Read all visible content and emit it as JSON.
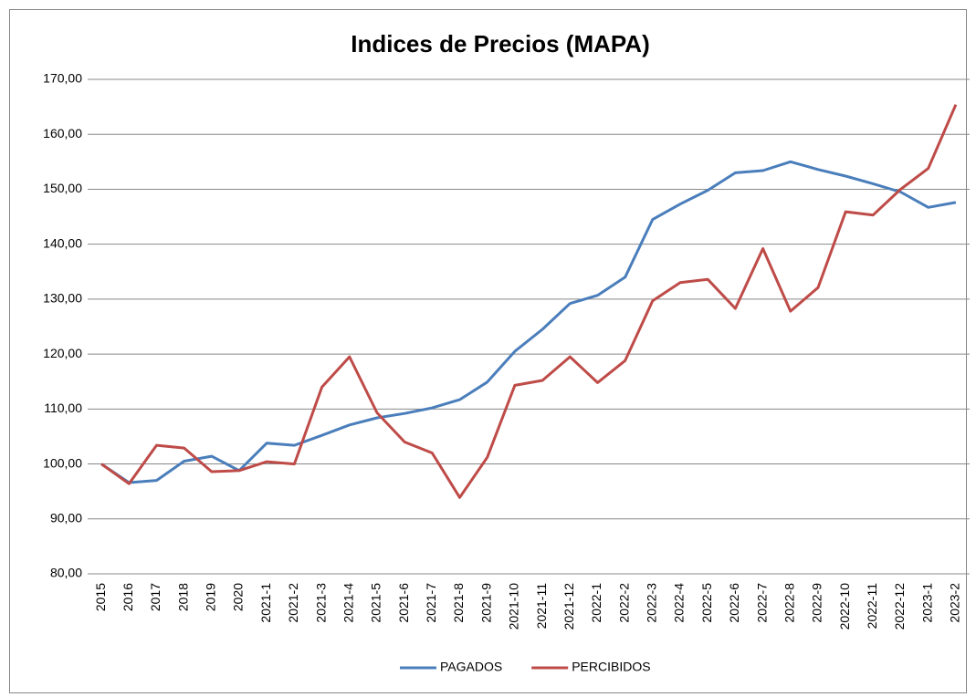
{
  "chart_data": {
    "type": "line",
    "title": "Indices de Precios  (MAPA)",
    "categories": [
      "2015",
      "2016",
      "2017",
      "2018",
      "2019",
      "2020",
      "2021-1",
      "2021-2",
      "2021-3",
      "2021-4",
      "2021-5",
      "2021-6",
      "2021-7",
      "2021-8",
      "2021-9",
      "2021-10",
      "2021-11",
      "2021-12",
      "2022-1",
      "2022-2",
      "2022-3",
      "2022-4",
      "2022-5",
      "2022-6",
      "2022-7",
      "2022-8",
      "2022-9",
      "2022-10",
      "2022-11",
      "2022-12",
      "2023-1",
      "2023-2"
    ],
    "series": [
      {
        "name": "PAGADOS",
        "color": "#4a7ebb",
        "values": [
          100,
          96.6,
          97.0,
          100.5,
          101.4,
          98.8,
          103.8,
          103.4,
          105.2,
          107.1,
          108.4,
          109.2,
          110.2,
          111.7,
          114.9,
          120.5,
          124.5,
          129.2,
          130.7,
          134.0,
          144.5,
          147.3,
          149.8,
          153.0,
          153.4,
          155.0,
          153.6,
          152.4,
          151.0,
          149.5,
          146.7,
          147.6
        ]
      },
      {
        "name": "PERCIBIDOS",
        "color": "#be4b48",
        "values": [
          100,
          96.4,
          103.4,
          102.9,
          98.6,
          98.8,
          100.4,
          100.0,
          114.0,
          119.5,
          109.3,
          104.0,
          102.0,
          93.9,
          101.2,
          114.3,
          115.2,
          119.5,
          114.8,
          118.8,
          129.7,
          133.0,
          133.6,
          128.3,
          139.2,
          127.8,
          132.1,
          145.9,
          145.3,
          150.0,
          153.8,
          165.4
        ]
      }
    ],
    "ylim": [
      80,
      170
    ],
    "yticks": [
      {
        "value": 80,
        "label": "80,00"
      },
      {
        "value": 90,
        "label": "90,00"
      },
      {
        "value": 100,
        "label": "100,00"
      },
      {
        "value": 110,
        "label": "110,00"
      },
      {
        "value": 120,
        "label": "120,00"
      },
      {
        "value": 130,
        "label": "130,00"
      },
      {
        "value": 140,
        "label": "140,00"
      },
      {
        "value": 150,
        "label": "150,00"
      },
      {
        "value": 160,
        "label": "160,00"
      },
      {
        "value": 170,
        "label": "170,00"
      }
    ],
    "grid": true,
    "legend": "bottom"
  }
}
